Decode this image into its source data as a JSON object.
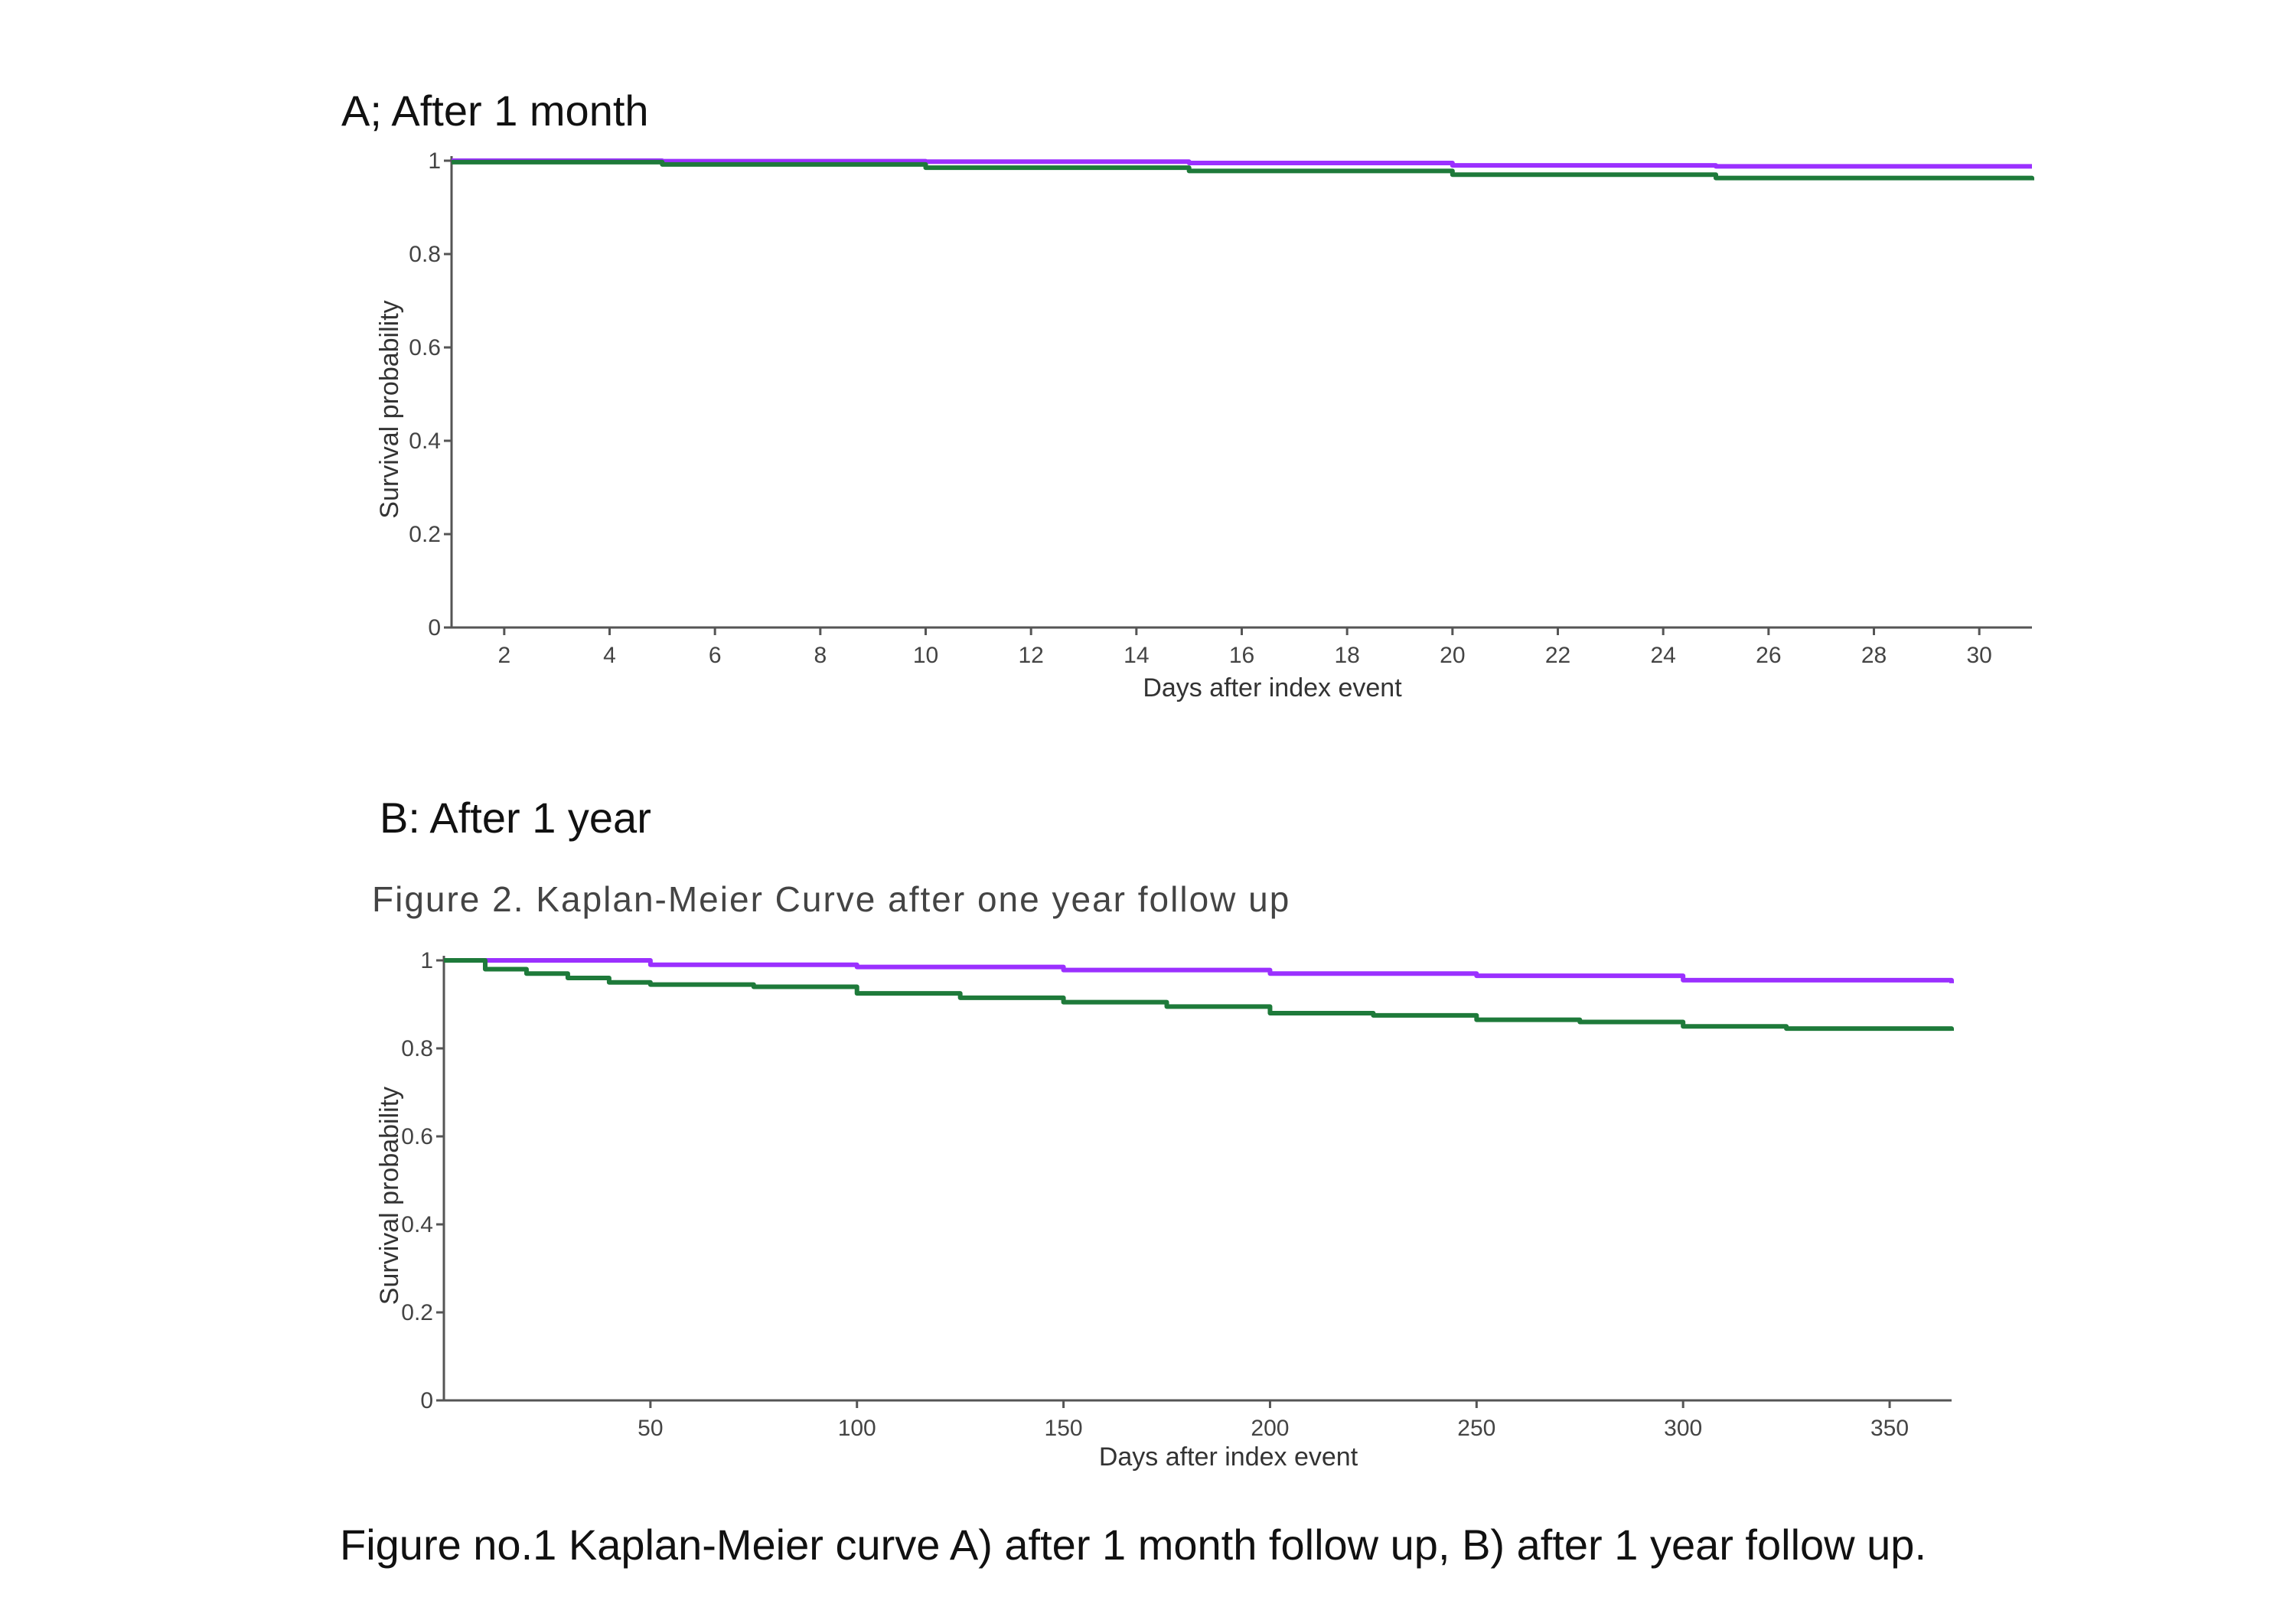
{
  "panel_a_title": "A; After 1 month",
  "panel_b_title": "B: After 1 year",
  "panel_b_subtitle": "Figure 2. Kaplan-Meier Curve after one year follow up",
  "caption": "Figure no.1 Kaplan-Meier curve A) after 1 month follow up, B) after 1 year follow up.",
  "colors": {
    "purple": "#9b30ff",
    "green": "#1e7a3a"
  },
  "chart_data": [
    {
      "type": "line",
      "title": "A; After 1 month",
      "xlabel": "Days after index event",
      "ylabel": "Survival probability",
      "xlim": [
        1,
        31
      ],
      "ylim": [
        0,
        1
      ],
      "xticks": [
        2,
        4,
        6,
        8,
        10,
        12,
        14,
        16,
        18,
        20,
        22,
        24,
        26,
        28,
        30
      ],
      "yticks": [
        0,
        0.2,
        0.4,
        0.6,
        0.8,
        1
      ],
      "ytick_labels": [
        "0",
        "0.2",
        "0.4",
        "0.6",
        "0.8",
        "1"
      ],
      "grid": false,
      "series": [
        {
          "color": "#9b30ff",
          "x": [
            1,
            5,
            10,
            15,
            20,
            25,
            31
          ],
          "y": [
            1.0,
            0.999,
            0.998,
            0.995,
            0.99,
            0.988,
            0.988
          ]
        },
        {
          "color": "#1e7a3a",
          "x": [
            1,
            5,
            10,
            15,
            20,
            25,
            31
          ],
          "y": [
            0.997,
            0.992,
            0.985,
            0.978,
            0.97,
            0.963,
            0.958
          ]
        }
      ]
    },
    {
      "type": "line",
      "title": "B: After 1 year",
      "subtitle": "Figure 2. Kaplan-Meier Curve after one year follow up",
      "xlabel": "Days after index event",
      "ylabel": "Survival probability",
      "xlim": [
        0,
        365
      ],
      "ylim": [
        0,
        1
      ],
      "xticks": [
        50,
        100,
        150,
        200,
        250,
        300,
        350
      ],
      "yticks": [
        0,
        0.2,
        0.4,
        0.6,
        0.8,
        1
      ],
      "ytick_labels": [
        "0",
        "0.2",
        "0.4",
        "0.6",
        "0.8",
        "1"
      ],
      "grid": false,
      "series": [
        {
          "color": "#9b30ff",
          "x": [
            0,
            50,
            100,
            150,
            200,
            250,
            300,
            365
          ],
          "y": [
            1.0,
            0.99,
            0.985,
            0.978,
            0.97,
            0.965,
            0.955,
            0.948
          ]
        },
        {
          "color": "#1e7a3a",
          "x": [
            0,
            10,
            20,
            30,
            40,
            50,
            75,
            100,
            125,
            150,
            175,
            200,
            225,
            250,
            275,
            300,
            325,
            365
          ],
          "y": [
            1.0,
            0.98,
            0.97,
            0.96,
            0.95,
            0.945,
            0.94,
            0.925,
            0.915,
            0.905,
            0.895,
            0.88,
            0.875,
            0.865,
            0.86,
            0.85,
            0.845,
            0.84
          ]
        }
      ]
    }
  ]
}
